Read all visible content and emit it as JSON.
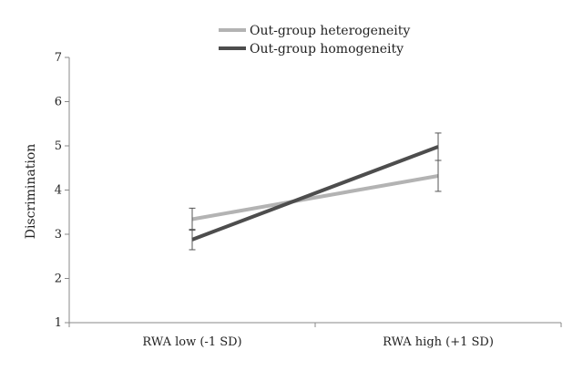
{
  "chart_data": {
    "type": "line",
    "title": "",
    "xlabel": "",
    "ylabel": "Discrimination",
    "ylim": [
      1,
      7
    ],
    "yticks": [
      1,
      2,
      3,
      4,
      5,
      6,
      7
    ],
    "categories": [
      "RWA low (-1 SD)",
      "RWA high (+1 SD)"
    ],
    "legend_position": "top",
    "series": [
      {
        "name": "Out-group heterogeneity",
        "color": "#b3b3b3",
        "values": [
          3.34,
          4.32
        ],
        "error": [
          0.25,
          0.35
        ]
      },
      {
        "name": "Out-group homogeneity",
        "color": "#4d4d4d",
        "values": [
          2.88,
          4.98
        ],
        "error": [
          0.23,
          0.31
        ]
      }
    ]
  }
}
